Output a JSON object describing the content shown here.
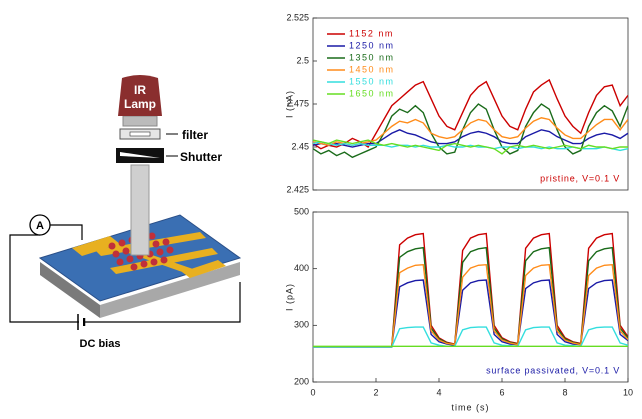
{
  "diagram": {
    "lamp_lines": [
      "IR",
      "Lamp"
    ],
    "filter_label": "filter",
    "shutter_label": "Shutter",
    "ammeter_label": "A",
    "bias_label": "DC bias"
  },
  "chart_data": [
    {
      "type": "line",
      "ylabel": "I (nA)",
      "annotation": "pristine, V=0.1 V",
      "annotation_color": "#cc0000",
      "legend": "upper left",
      "xlim": [
        0,
        10
      ],
      "ylim": [
        2.425,
        2.525
      ],
      "yticks": [
        2.425,
        2.45,
        2.475,
        2.5,
        2.525
      ],
      "x": [
        0,
        0.25,
        0.5,
        0.75,
        1,
        1.25,
        1.5,
        1.75,
        2,
        2.25,
        2.5,
        2.75,
        3,
        3.25,
        3.5,
        3.75,
        4,
        4.25,
        4.5,
        4.75,
        5,
        5.25,
        5.5,
        5.75,
        6,
        6.25,
        6.5,
        6.75,
        7,
        7.25,
        7.5,
        7.75,
        8,
        8.25,
        8.5,
        8.75,
        9,
        9.25,
        9.5,
        9.75,
        10
      ],
      "series": [
        {
          "name": "1152 nm",
          "color": "#cc0000",
          "values": [
            2.452,
            2.449,
            2.451,
            2.45,
            2.452,
            2.455,
            2.453,
            2.45,
            2.458,
            2.466,
            2.474,
            2.478,
            2.482,
            2.486,
            2.488,
            2.478,
            2.468,
            2.462,
            2.46,
            2.47,
            2.48,
            2.485,
            2.488,
            2.478,
            2.468,
            2.462,
            2.46,
            2.472,
            2.482,
            2.486,
            2.489,
            2.478,
            2.468,
            2.462,
            2.458,
            2.47,
            2.48,
            2.485,
            2.486,
            2.474,
            2.48
          ]
        },
        {
          "name": "1250 nm",
          "color": "#1a1aa6",
          "values": [
            2.451,
            2.452,
            2.451,
            2.452,
            2.451,
            2.45,
            2.451,
            2.452,
            2.452,
            2.455,
            2.458,
            2.46,
            2.458,
            2.457,
            2.455,
            2.453,
            2.452,
            2.452,
            2.453,
            2.456,
            2.458,
            2.459,
            2.458,
            2.456,
            2.453,
            2.452,
            2.452,
            2.456,
            2.458,
            2.46,
            2.459,
            2.456,
            2.454,
            2.452,
            2.452,
            2.455,
            2.457,
            2.458,
            2.457,
            2.455,
            2.458
          ]
        },
        {
          "name": "1350 nm",
          "color": "#1a6b1a",
          "values": [
            2.449,
            2.446,
            2.448,
            2.445,
            2.447,
            2.444,
            2.446,
            2.448,
            2.45,
            2.458,
            2.468,
            2.472,
            2.47,
            2.474,
            2.47,
            2.458,
            2.45,
            2.446,
            2.447,
            2.46,
            2.47,
            2.475,
            2.472,
            2.46,
            2.45,
            2.446,
            2.448,
            2.462,
            2.47,
            2.475,
            2.472,
            2.46,
            2.45,
            2.446,
            2.448,
            2.462,
            2.47,
            2.474,
            2.471,
            2.462,
            2.474
          ]
        },
        {
          "name": "1450 nm",
          "color": "#ff8c1a",
          "values": [
            2.453,
            2.452,
            2.451,
            2.453,
            2.452,
            2.451,
            2.452,
            2.453,
            2.454,
            2.458,
            2.462,
            2.465,
            2.464,
            2.466,
            2.464,
            2.458,
            2.456,
            2.455,
            2.456,
            2.46,
            2.464,
            2.466,
            2.465,
            2.46,
            2.456,
            2.455,
            2.456,
            2.461,
            2.465,
            2.467,
            2.466,
            2.461,
            2.457,
            2.455,
            2.455,
            2.459,
            2.463,
            2.466,
            2.466,
            2.46,
            2.466
          ]
        },
        {
          "name": "1550 nm",
          "color": "#33dede",
          "values": [
            2.452,
            2.453,
            2.452,
            2.451,
            2.452,
            2.451,
            2.452,
            2.451,
            2.451,
            2.451,
            2.45,
            2.451,
            2.451,
            2.45,
            2.451,
            2.45,
            2.45,
            2.451,
            2.45,
            2.45,
            2.451,
            2.45,
            2.45,
            2.449,
            2.45,
            2.45,
            2.449,
            2.45,
            2.45,
            2.449,
            2.45,
            2.449,
            2.449,
            2.45,
            2.449,
            2.449,
            2.449,
            2.45,
            2.449,
            2.448,
            2.449
          ]
        },
        {
          "name": "1650 nm",
          "color": "#66dd22",
          "values": [
            2.454,
            2.453,
            2.452,
            2.454,
            2.453,
            2.452,
            2.453,
            2.454,
            2.452,
            2.451,
            2.452,
            2.451,
            2.45,
            2.451,
            2.45,
            2.449,
            2.448,
            2.451,
            2.452,
            2.451,
            2.45,
            2.451,
            2.45,
            2.449,
            2.446,
            2.45,
            2.451,
            2.45,
            2.451,
            2.45,
            2.449,
            2.45,
            2.451,
            2.45,
            2.449,
            2.451,
            2.45,
            2.45,
            2.449,
            2.45,
            2.45
          ]
        }
      ]
    },
    {
      "type": "line",
      "ylabel": "I (pA)",
      "xlabel": "time (s)",
      "annotation": "surface passivated, V=0.1 V",
      "annotation_color": "#1a1aa6",
      "xlim": [
        0,
        10
      ],
      "xticks": [
        0,
        2,
        4,
        6,
        8,
        10
      ],
      "ylim": [
        200,
        500
      ],
      "yticks": [
        200,
        300,
        400,
        500
      ],
      "x": [
        0,
        0.25,
        0.5,
        0.75,
        1,
        1.25,
        1.5,
        1.75,
        2,
        2.25,
        2.5,
        2.75,
        3,
        3.25,
        3.5,
        3.75,
        4,
        4.25,
        4.5,
        4.75,
        5,
        5.25,
        5.5,
        5.75,
        6,
        6.25,
        6.5,
        6.75,
        7,
        7.25,
        7.5,
        7.75,
        8,
        8.25,
        8.5,
        8.75,
        9,
        9.25,
        9.5,
        9.75,
        10
      ],
      "series": [
        {
          "name": "1152 nm",
          "color": "#cc0000",
          "values": [
            262,
            262,
            262,
            262,
            262,
            262,
            262,
            262,
            262,
            262,
            262,
            442,
            454,
            460,
            462,
            300,
            278,
            270,
            267,
            432,
            454,
            460,
            462,
            300,
            278,
            271,
            268,
            436,
            454,
            460,
            462,
            300,
            278,
            271,
            268,
            436,
            454,
            460,
            462,
            300,
            280
          ]
        },
        {
          "name": "1250 nm",
          "color": "#1a1aa6",
          "values": [
            262,
            262,
            262,
            262,
            262,
            262,
            262,
            262,
            262,
            262,
            262,
            368,
            375,
            379,
            380,
            284,
            271,
            267,
            265,
            362,
            375,
            379,
            380,
            284,
            271,
            267,
            266,
            365,
            375,
            379,
            380,
            284,
            271,
            267,
            266,
            365,
            375,
            379,
            380,
            284,
            273
          ]
        },
        {
          "name": "1350 nm",
          "color": "#1a6b1a",
          "values": [
            262,
            262,
            262,
            262,
            262,
            262,
            262,
            262,
            262,
            262,
            262,
            420,
            430,
            435,
            437,
            295,
            276,
            269,
            266,
            411,
            430,
            435,
            437,
            295,
            276,
            270,
            267,
            414,
            430,
            435,
            437,
            295,
            276,
            270,
            267,
            414,
            430,
            435,
            437,
            295,
            278
          ]
        },
        {
          "name": "1450 nm",
          "color": "#ff8c1a",
          "values": [
            262,
            262,
            262,
            262,
            262,
            262,
            262,
            262,
            262,
            262,
            262,
            393,
            401,
            406,
            407,
            290,
            274,
            268,
            266,
            385,
            401,
            406,
            407,
            290,
            274,
            269,
            266,
            388,
            401,
            406,
            407,
            290,
            274,
            269,
            266,
            388,
            401,
            406,
            407,
            290,
            275
          ]
        },
        {
          "name": "1550 nm",
          "color": "#33dede",
          "values": [
            262,
            262,
            262,
            262,
            262,
            262,
            262,
            262,
            262,
            262,
            262,
            294,
            296,
            297,
            297,
            269,
            265,
            263,
            263,
            292,
            296,
            297,
            297,
            269,
            265,
            264,
            263,
            292,
            296,
            297,
            297,
            269,
            265,
            264,
            263,
            292,
            296,
            297,
            297,
            269,
            265
          ]
        },
        {
          "name": "1650 nm",
          "color": "#66dd22",
          "values": [
            263,
            263,
            263,
            263,
            263,
            263,
            263,
            263,
            263,
            263,
            263,
            263,
            263,
            263,
            263,
            263,
            263,
            263,
            263,
            263,
            263,
            263,
            263,
            263,
            263,
            263,
            263,
            263,
            263,
            263,
            263,
            263,
            263,
            263,
            263,
            263,
            263,
            263,
            263,
            263,
            263
          ]
        }
      ]
    }
  ]
}
